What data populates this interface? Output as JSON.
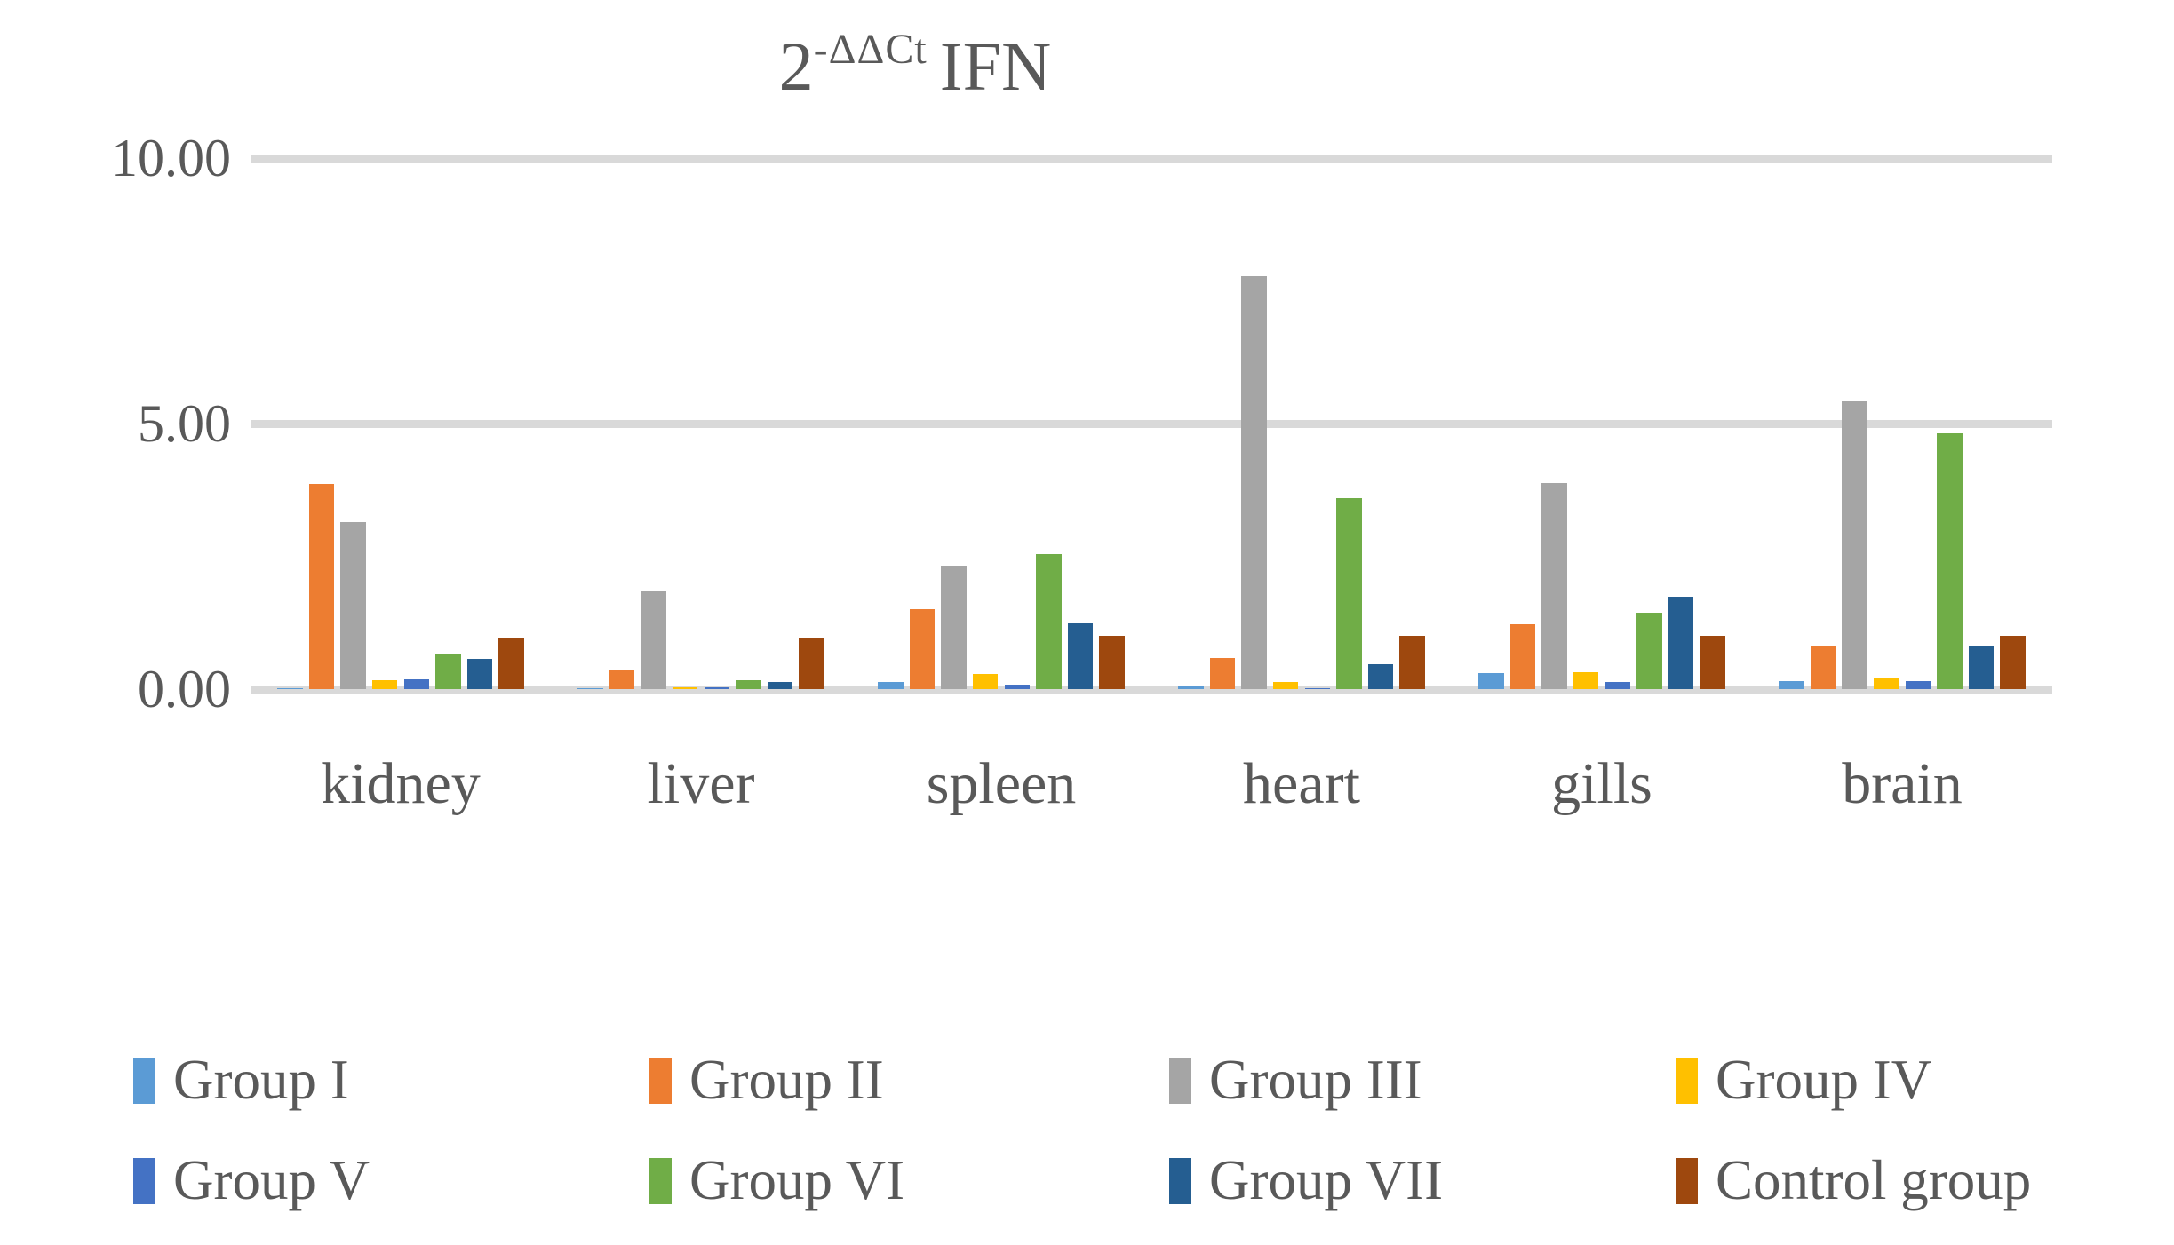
{
  "chart_data": {
    "type": "bar",
    "title": {
      "base": "2",
      "superscript": "-ΔΔCt",
      "suffix": "IFN"
    },
    "categories": [
      "kidney",
      "liver",
      "spleen",
      "heart",
      "gills",
      "brain"
    ],
    "series": [
      {
        "name": "Group I",
        "color": "#5B9BD5",
        "values": [
          0.02,
          0.02,
          0.14,
          0.07,
          0.3,
          0.15
        ]
      },
      {
        "name": "Group II",
        "color": "#ED7D31",
        "values": [
          3.87,
          0.37,
          1.5,
          0.58,
          1.22,
          0.8
        ]
      },
      {
        "name": "Group III",
        "color": "#A5A5A5",
        "values": [
          3.15,
          1.85,
          2.33,
          7.78,
          3.88,
          5.41
        ]
      },
      {
        "name": "Group IV",
        "color": "#FFC000",
        "values": [
          0.17,
          0.04,
          0.28,
          0.13,
          0.32,
          0.2
        ]
      },
      {
        "name": "Group V",
        "color": "#4472C4",
        "values": [
          0.18,
          0.03,
          0.09,
          0.02,
          0.13,
          0.15
        ]
      },
      {
        "name": "Group VI",
        "color": "#70AD47",
        "values": [
          0.65,
          0.17,
          2.55,
          3.6,
          1.43,
          4.82
        ]
      },
      {
        "name": "Group VII",
        "color": "#255E91",
        "values": [
          0.57,
          0.14,
          1.23,
          0.47,
          1.74,
          0.8
        ]
      },
      {
        "name": "Control group",
        "color": "#9E480E",
        "values": [
          0.97,
          0.97,
          1.0,
          1.0,
          1.0,
          1.0
        ]
      }
    ],
    "ylim": [
      0,
      10
    ],
    "yticks": [
      {
        "label": "10.00",
        "value": 10
      },
      {
        "label": "5.00",
        "value": 5
      },
      {
        "label": "0.00",
        "value": 0
      }
    ],
    "grid": "horizontal",
    "legend_position": "bottom",
    "legend_columns": 4
  },
  "colors": {
    "text": "#595959",
    "gridline": "#D9D9D9",
    "background": "#FFFFFF"
  }
}
